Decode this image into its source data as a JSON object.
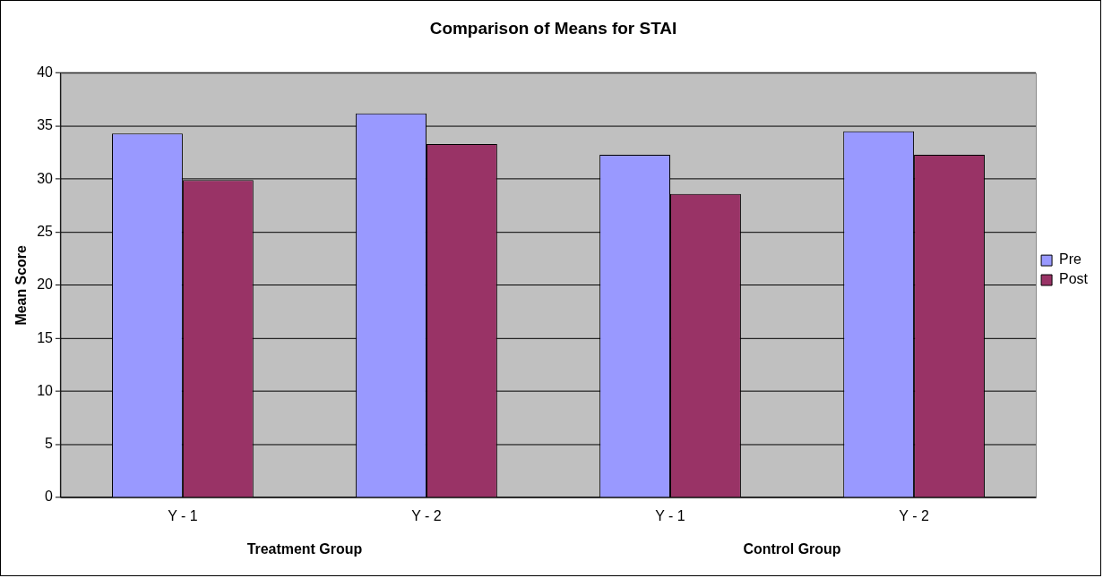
{
  "chart_data": {
    "type": "bar",
    "title": "Comparison of Means for STAI",
    "ylabel": "Mean Score",
    "categories": [
      "Y - 1",
      "Y - 2",
      "Y - 1",
      "Y - 2"
    ],
    "series": [
      {
        "name": "Pre",
        "color": "#9999ff",
        "values": [
          34.3,
          36.2,
          32.3,
          34.5
        ]
      },
      {
        "name": "Post",
        "color": "#993366",
        "values": [
          29.9,
          33.3,
          28.6,
          32.3
        ]
      }
    ],
    "ylim": [
      0,
      40
    ],
    "yticks": [
      0,
      5,
      10,
      15,
      20,
      25,
      30,
      35,
      40
    ],
    "grid": "y",
    "legend": "right",
    "annotations": [
      "Treatment Group",
      "Control Group"
    ]
  }
}
